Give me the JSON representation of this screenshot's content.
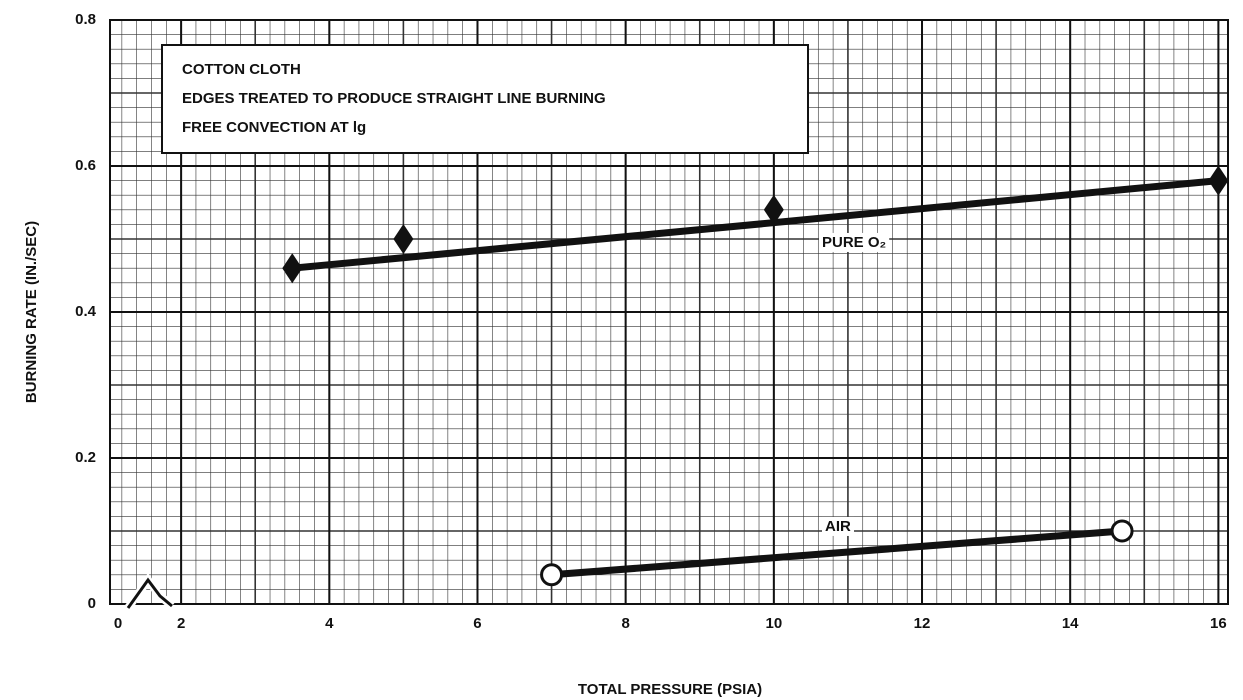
{
  "chart_data": {
    "type": "line",
    "x_title": "TOTAL PRESSURE (PSIA)",
    "y_title": "BURNING RATE (IN./SEC)",
    "annotations": [
      "COTTON CLOTH",
      "EDGES TREATED TO PRODUCE STRAIGHT LINE BURNING",
      "FREE CONVECTION AT lg"
    ],
    "x_break_label": "0",
    "xlim": [
      1.04,
      16.13
    ],
    "xticks": [
      2,
      4,
      6,
      8,
      10,
      12,
      14,
      16
    ],
    "ylim": [
      0,
      0.8
    ],
    "yticks": [
      0,
      0.2,
      0.4,
      0.6,
      0.8
    ],
    "grid": true,
    "x_minor": 0.2,
    "y_minor": 0.02,
    "series": [
      {
        "name": "PURE O₂",
        "color": "#111111",
        "marker": "diamond",
        "x": [
          3.5,
          5,
          10,
          16
        ],
        "values": [
          0.46,
          0.5,
          0.54,
          0.58
        ],
        "fit": {
          "x": [
            3.5,
            16
          ],
          "values": [
            0.46,
            0.58
          ]
        }
      },
      {
        "name": "AIR",
        "color": "#111111",
        "marker": "open-circle",
        "x": [
          7,
          14.7
        ],
        "values": [
          0.04,
          0.1
        ],
        "fit": {
          "x": [
            7,
            14.7
          ],
          "values": [
            0.04,
            0.1
          ]
        }
      }
    ]
  }
}
